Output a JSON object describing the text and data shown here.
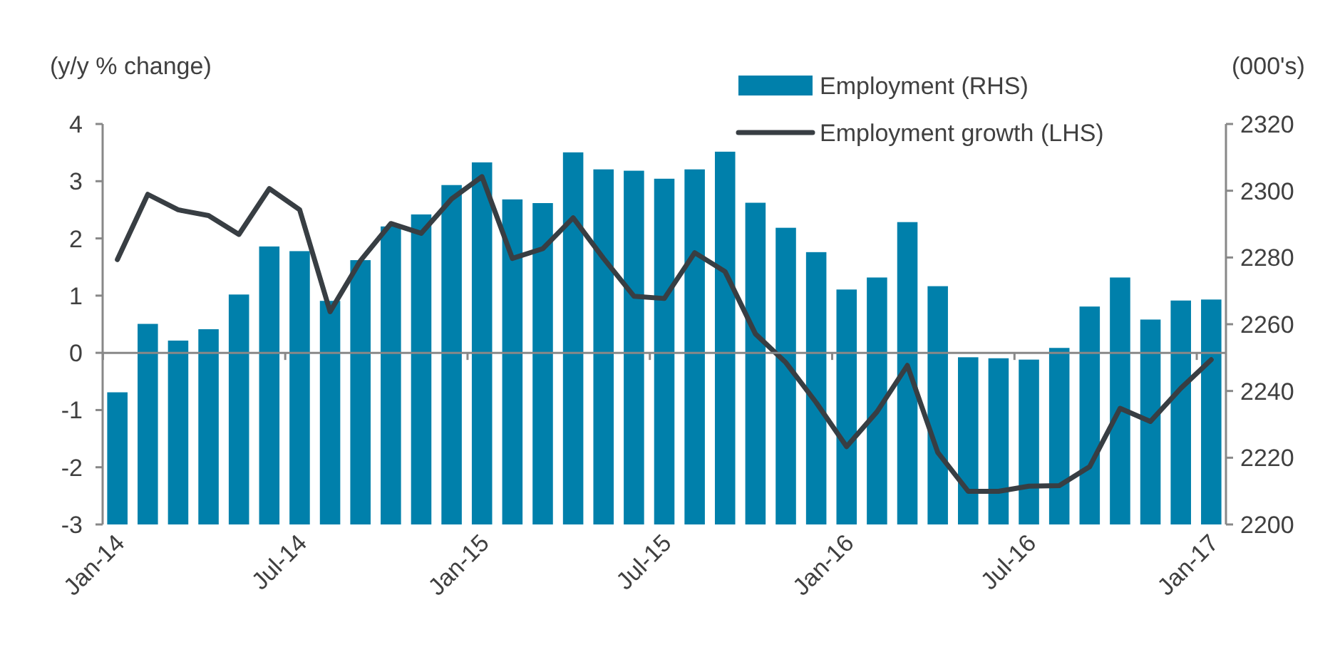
{
  "chart_data": {
    "type": "bar",
    "ylabel": "(y/y % change)",
    "y2label": "(000's)",
    "categories": [
      "Jan-14",
      null,
      null,
      null,
      null,
      null,
      "Jul-14",
      null,
      null,
      null,
      null,
      null,
      "Jan-15",
      null,
      null,
      null,
      null,
      null,
      "Jul-15",
      null,
      null,
      null,
      null,
      null,
      "Jan-16",
      null,
      null,
      null,
      null,
      null,
      "Jul-16",
      null,
      null,
      null,
      null,
      null,
      "Jan-17"
    ],
    "series": [
      {
        "name": "Employment (RHS)",
        "axis": "y2",
        "color": "#0080ab",
        "values": [
          2239.6,
          2260.1,
          2255.1,
          2258.5,
          2268.9,
          2283.3,
          2281.9,
          2267,
          2279.2,
          2289.3,
          2292.9,
          2301.7,
          2308.5,
          2297.4,
          2296.3,
          2311.5,
          2306.4,
          2306,
          2303.6,
          2306.4,
          2311.7,
          2296.4,
          2288.9,
          2281.6,
          2270.4,
          2274,
          2290.6,
          2271.4,
          2250.1,
          2249.8,
          2249.4,
          2252.9,
          2265.3,
          2274,
          2261.4,
          2267.1,
          2267.4
        ]
      },
      {
        "name": "Employment growth (LHS)",
        "type": "line",
        "axis": "y",
        "color": "#383e43",
        "values": [
          1.63,
          2.77,
          2.5,
          2.4,
          2.07,
          2.87,
          2.5,
          0.72,
          1.61,
          2.26,
          2.09,
          2.69,
          3.08,
          1.65,
          1.82,
          2.36,
          1.65,
          0.99,
          0.95,
          1.75,
          1.42,
          0.33,
          -0.17,
          -0.87,
          -1.64,
          -1.03,
          -0.22,
          -1.74,
          -2.42,
          -2.42,
          -2.33,
          -2.32,
          -1.99,
          -0.97,
          -1.2,
          -0.62,
          -0.12
        ]
      }
    ],
    "ylim": [
      -3,
      4
    ],
    "yticks": [
      -3,
      -2,
      -1,
      0,
      1,
      2,
      3,
      4
    ],
    "y2lim": [
      2200,
      2320
    ],
    "y2ticks": [
      2200,
      2220,
      2240,
      2260,
      2280,
      2300,
      2320
    ],
    "legend": "top right",
    "line_style": "solid",
    "marker": "none"
  }
}
